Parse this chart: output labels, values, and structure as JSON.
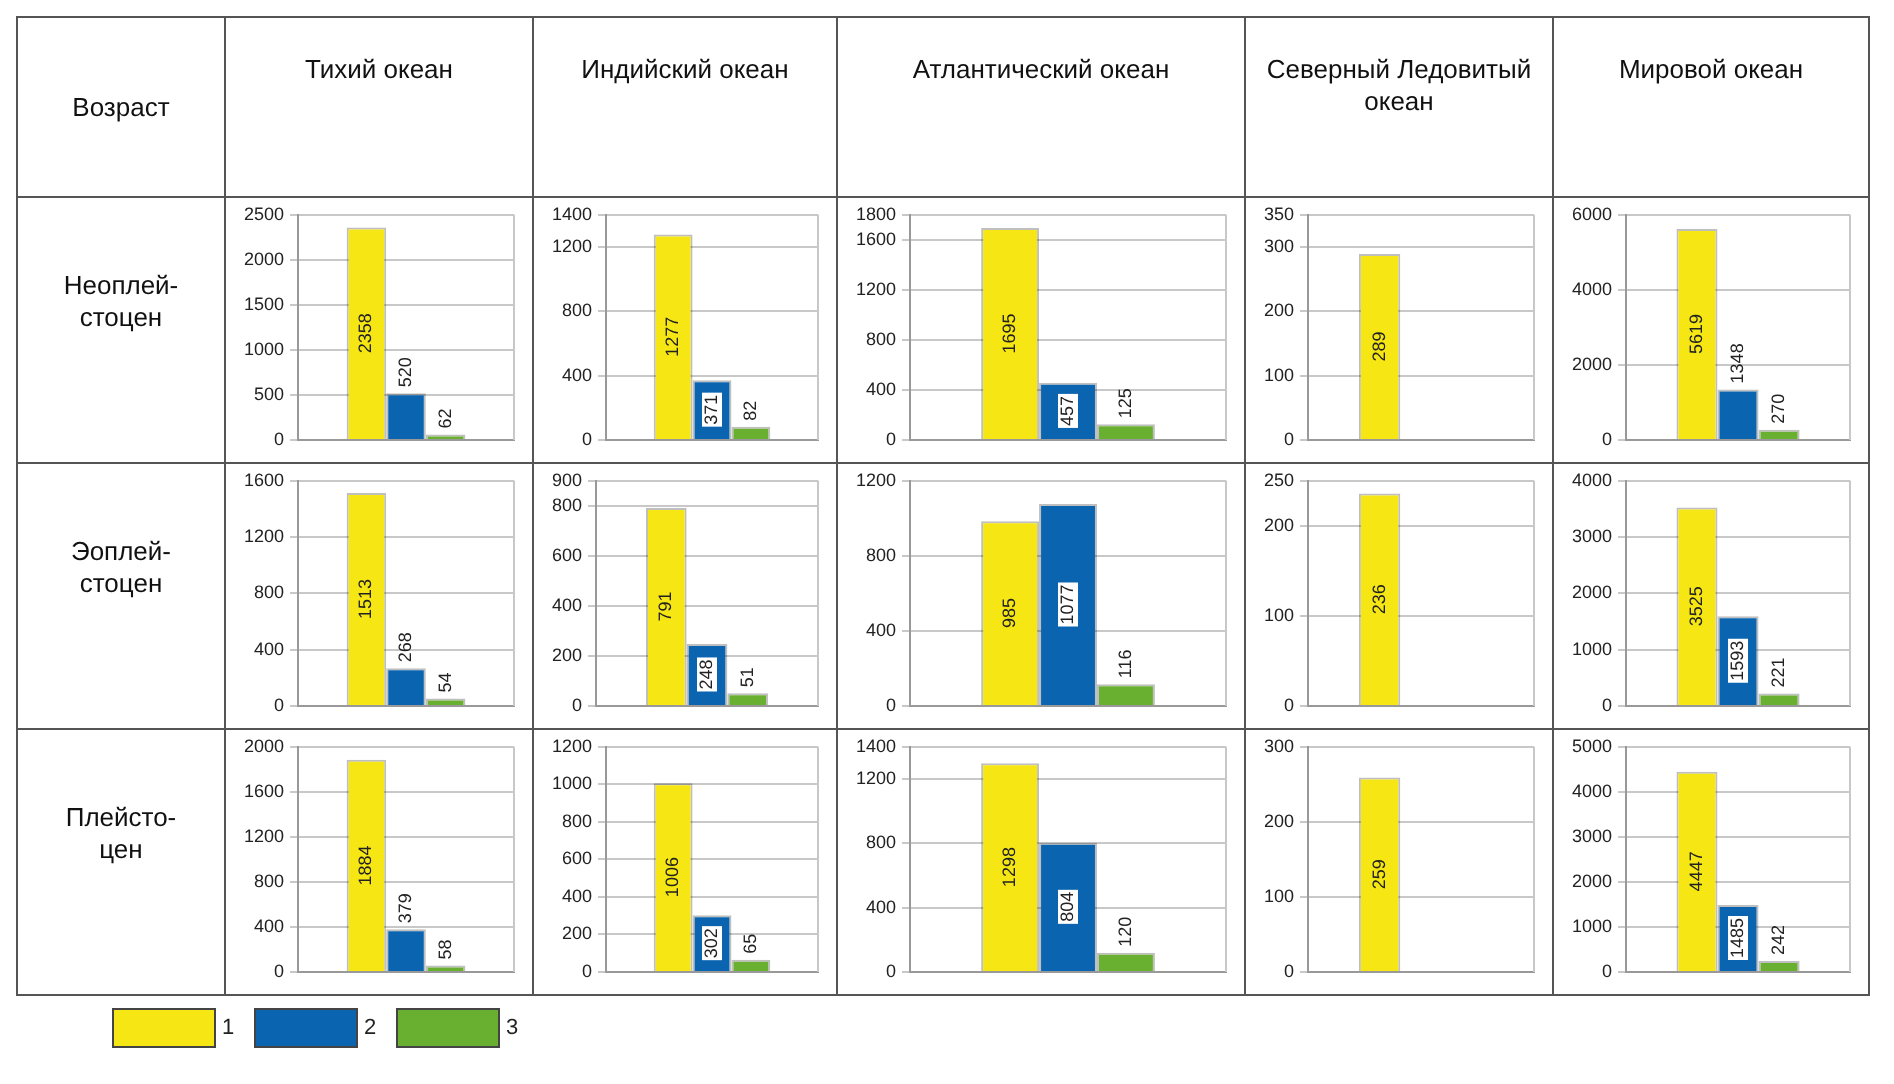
{
  "chart_data": [
    {
      "type": "other",
      "annotations": [
        "Возраст",
        "Тихий океан",
        "Индийский океан",
        "Атлантический океан",
        "Северный Ледовитый океан",
        "Мировой океан",
        "Неоплей-\nстоцен",
        "Эоплей-\nстоцен",
        "Плейсто-\nцен"
      ]
    },
    {
      "type": "bar",
      "categories": [
        null
      ],
      "legend": "bottom left",
      "series": [
        {
          "name": "1",
          "color": "#f5e614",
          "values": [
            2358
          ]
        },
        {
          "name": "2",
          "color": "#0a64b0",
          "values": [
            520
          ]
        },
        {
          "name": "3",
          "color": "#6ab030",
          "values": [
            62
          ]
        }
      ],
      "ylim": [
        0,
        2500
      ],
      "yticks": [
        0,
        500,
        1000,
        1500,
        2000,
        2500
      ],
      "grid": "y",
      "data_labels": true,
      "tick_labels": "y"
    },
    {
      "type": "bar",
      "categories": [
        null
      ],
      "series": [
        {
          "color": "#f5e614",
          "values": [
            1277
          ]
        },
        {
          "color": "#0a64b0",
          "values": [
            371
          ]
        },
        {
          "color": "#6ab030",
          "values": [
            82
          ]
        }
      ],
      "ylim": [
        0,
        1400
      ],
      "yticks": [
        0,
        400,
        800,
        1200,
        1400
      ],
      "grid": "y",
      "data_labels": true,
      "tick_labels": "y"
    },
    {
      "type": "bar",
      "categories": [
        null
      ],
      "series": [
        {
          "color": "#f5e614",
          "values": [
            1695
          ]
        },
        {
          "color": "#0a64b0",
          "values": [
            457
          ]
        },
        {
          "color": "#6ab030",
          "values": [
            125
          ]
        }
      ],
      "ylim": [
        0,
        1800
      ],
      "yticks": [
        0,
        400,
        800,
        1200,
        1600,
        1800
      ],
      "grid": "y",
      "data_labels": true,
      "tick_labels": "y"
    },
    {
      "type": "bar",
      "categories": [
        null
      ],
      "series": [
        {
          "color": "#f5e614",
          "values": [
            289
          ]
        },
        {
          "color": "#0a64b0",
          "values": [
            null
          ]
        },
        {
          "color": "#6ab030",
          "values": [
            null
          ]
        }
      ],
      "ylim": [
        0,
        350
      ],
      "yticks": [
        0,
        100,
        200,
        300,
        350
      ],
      "grid": "y",
      "data_labels": true,
      "tick_labels": "y"
    },
    {
      "type": "bar",
      "categories": [
        null
      ],
      "series": [
        {
          "color": "#f5e614",
          "values": [
            5619
          ]
        },
        {
          "color": "#0a64b0",
          "values": [
            1348
          ]
        },
        {
          "color": "#6ab030",
          "values": [
            270
          ]
        }
      ],
      "ylim": [
        0,
        6000
      ],
      "yticks": [
        0,
        2000,
        4000,
        6000
      ],
      "grid": "y",
      "data_labels": true,
      "tick_labels": "y"
    },
    {
      "type": "bar",
      "categories": [
        null
      ],
      "series": [
        {
          "color": "#f5e614",
          "values": [
            1513
          ]
        },
        {
          "color": "#0a64b0",
          "values": [
            268
          ]
        },
        {
          "color": "#6ab030",
          "values": [
            54
          ]
        }
      ],
      "ylim": [
        0,
        1600
      ],
      "yticks": [
        0,
        400,
        800,
        1200,
        1600
      ],
      "grid": "y",
      "data_labels": true,
      "tick_labels": "y"
    },
    {
      "type": "bar",
      "categories": [
        null
      ],
      "series": [
        {
          "color": "#f5e614",
          "values": [
            791
          ]
        },
        {
          "color": "#0a64b0",
          "values": [
            248
          ]
        },
        {
          "color": "#6ab030",
          "values": [
            51
          ]
        }
      ],
      "ylim": [
        0,
        900
      ],
      "yticks": [
        0,
        200,
        400,
        600,
        800,
        900
      ],
      "grid": "y",
      "data_labels": true,
      "tick_labels": "y"
    },
    {
      "type": "bar",
      "categories": [
        null
      ],
      "series": [
        {
          "color": "#f5e614",
          "values": [
            985
          ]
        },
        {
          "color": "#0a64b0",
          "values": [
            1077
          ]
        },
        {
          "color": "#6ab030",
          "values": [
            116
          ]
        }
      ],
      "ylim": [
        0,
        1200
      ],
      "yticks": [
        0,
        400,
        800,
        1200
      ],
      "grid": "y",
      "data_labels": true,
      "tick_labels": "y"
    },
    {
      "type": "bar",
      "categories": [
        null
      ],
      "series": [
        {
          "color": "#f5e614",
          "values": [
            236
          ]
        },
        {
          "color": "#0a64b0",
          "values": [
            null
          ]
        },
        {
          "color": "#6ab030",
          "values": [
            null
          ]
        }
      ],
      "ylim": [
        0,
        250
      ],
      "yticks": [
        0,
        100,
        200,
        250
      ],
      "grid": "y",
      "data_labels": true,
      "tick_labels": "y"
    },
    {
      "type": "bar",
      "categories": [
        null
      ],
      "series": [
        {
          "color": "#f5e614",
          "values": [
            3525
          ]
        },
        {
          "color": "#0a64b0",
          "values": [
            1593
          ]
        },
        {
          "color": "#6ab030",
          "values": [
            221
          ]
        }
      ],
      "ylim": [
        0,
        4000
      ],
      "yticks": [
        0,
        1000,
        2000,
        3000,
        4000
      ],
      "grid": "y",
      "data_labels": true,
      "tick_labels": "y"
    },
    {
      "type": "bar",
      "categories": [
        null
      ],
      "series": [
        {
          "color": "#f5e614",
          "values": [
            1884
          ]
        },
        {
          "color": "#0a64b0",
          "values": [
            379
          ]
        },
        {
          "color": "#6ab030",
          "values": [
            58
          ]
        }
      ],
      "ylim": [
        0,
        2000
      ],
      "yticks": [
        0,
        400,
        800,
        1200,
        1600,
        2000
      ],
      "grid": "y",
      "data_labels": true,
      "tick_labels": "y"
    },
    {
      "type": "bar",
      "categories": [
        null
      ],
      "series": [
        {
          "color": "#f5e614",
          "values": [
            1006
          ]
        },
        {
          "color": "#0a64b0",
          "values": [
            302
          ]
        },
        {
          "color": "#6ab030",
          "values": [
            65
          ]
        }
      ],
      "ylim": [
        0,
        1200
      ],
      "yticks": [
        0,
        200,
        400,
        600,
        800,
        1000,
        1200
      ],
      "grid": "y",
      "data_labels": true,
      "tick_labels": "y"
    },
    {
      "type": "bar",
      "categories": [
        null
      ],
      "series": [
        {
          "color": "#f5e614",
          "values": [
            1298
          ]
        },
        {
          "color": "#0a64b0",
          "values": [
            804
          ]
        },
        {
          "color": "#6ab030",
          "values": [
            120
          ]
        }
      ],
      "ylim": [
        0,
        1400
      ],
      "yticks": [
        0,
        400,
        800,
        1200,
        1400
      ],
      "grid": "y",
      "data_labels": true,
      "tick_labels": "y"
    },
    {
      "type": "bar",
      "categories": [
        null
      ],
      "series": [
        {
          "color": "#f5e614",
          "values": [
            259
          ]
        },
        {
          "color": "#0a64b0",
          "values": [
            null
          ]
        },
        {
          "color": "#6ab030",
          "values": [
            null
          ]
        }
      ],
      "ylim": [
        0,
        300
      ],
      "yticks": [
        0,
        100,
        200,
        300
      ],
      "grid": "y",
      "data_labels": true,
      "tick_labels": "y"
    },
    {
      "type": "bar",
      "categories": [
        null
      ],
      "series": [
        {
          "color": "#f5e614",
          "values": [
            4447
          ]
        },
        {
          "color": "#0a64b0",
          "values": [
            1485
          ]
        },
        {
          "color": "#6ab030",
          "values": [
            242
          ]
        }
      ],
      "ylim": [
        0,
        5000
      ],
      "yticks": [
        0,
        1000,
        2000,
        3000,
        4000,
        5000
      ],
      "grid": "y",
      "data_labels": true,
      "tick_labels": "y"
    }
  ]
}
